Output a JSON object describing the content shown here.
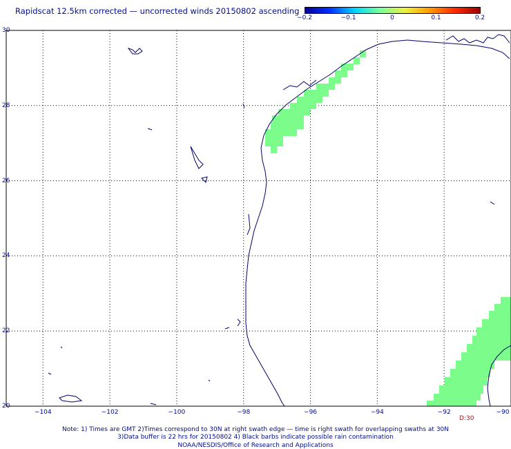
{
  "title": "Rapidscat 12.5km corrected — uncorrected winds 20150802 ascending",
  "colorbar": {
    "labels": [
      "−0.2",
      "−0.1",
      "0",
      "0.1",
      "0.2"
    ],
    "values": [
      -0.2,
      -0.1,
      0,
      0.1,
      0.2
    ],
    "colors": [
      "#00009a",
      "#0032ff",
      "#00d8ff",
      "#7aff9a",
      "#f0f040",
      "#ff9a00",
      "#ff2a00",
      "#9a0000"
    ]
  },
  "axes": {
    "lat_labels": [
      "30",
      "28",
      "26",
      "24",
      "22",
      "20"
    ],
    "lat_values": [
      30,
      28,
      26,
      24,
      22,
      20
    ],
    "lon_labels": [
      "−104",
      "−102",
      "−100",
      "−98",
      "−96",
      "−94",
      "−92",
      "−90"
    ],
    "lon_values": [
      -104,
      -102,
      -100,
      -98,
      -96,
      -94,
      -92,
      -90
    ],
    "lat_range": [
      20,
      30
    ],
    "lon_range": [
      -105.1,
      -90
    ],
    "grid": "dotted"
  },
  "wind_difference_cell_color": "#7cfc8a",
  "coast_color": "#00006a",
  "time_label": "D:30",
  "notes": [
    "Note: 1) Times are GMT 2)Times correspond to 30N at right swath edge — time is right swath for overlapping swaths at 30N",
    "3)Data buffer is 22 hrs for 20150802 4) Black barbs indicate possible rain contamination",
    "NOAA/NESDIS/Office of Research and Applications"
  ]
}
